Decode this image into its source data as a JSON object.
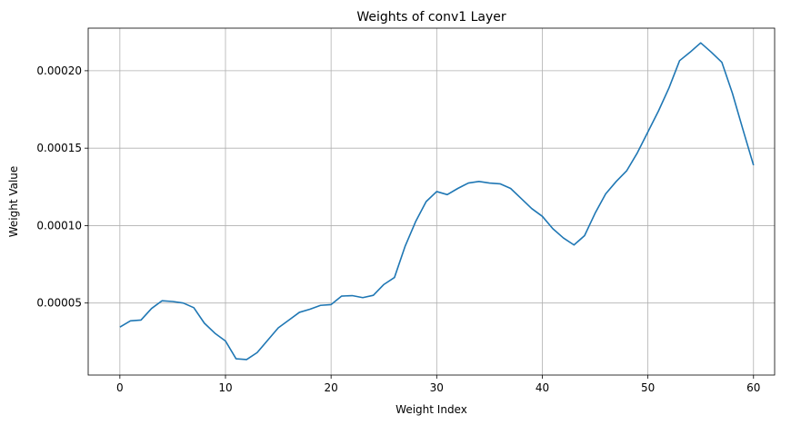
{
  "chart_data": {
    "type": "line",
    "title": "Weights of conv1 Layer",
    "xlabel": "Weight Index",
    "ylabel": "Weight Value",
    "xlim": [
      -3,
      62
    ],
    "ylim": [
      3.5e-06,
      0.0002275
    ],
    "grid": true,
    "xticks": [
      0,
      10,
      20,
      30,
      40,
      50,
      60
    ],
    "xtick_labels": [
      "0",
      "10",
      "20",
      "30",
      "40",
      "50",
      "60"
    ],
    "yticks": [
      5e-05,
      0.0001,
      0.00015,
      0.0002
    ],
    "ytick_labels": [
      "0.00005",
      "0.00010",
      "0.00015",
      "0.00020"
    ],
    "colors": {
      "line": "#1f77b4",
      "grid": "#b0b0b0"
    },
    "series": [
      {
        "x": [
          0,
          1,
          2,
          3,
          4,
          5,
          6,
          7,
          8,
          9,
          10,
          11,
          12,
          13,
          14,
          15,
          16,
          17,
          18,
          19,
          20,
          21,
          22,
          23,
          24,
          25,
          26,
          27,
          28,
          29,
          30,
          31,
          32,
          33,
          34,
          35,
          36,
          37,
          38,
          39,
          40,
          41,
          42,
          43,
          44,
          45,
          46,
          47,
          48,
          49,
          50,
          51,
          52,
          53,
          54,
          55,
          56,
          57,
          58,
          59,
          60
        ],
        "values": [
          3.45e-05,
          3.85e-05,
          3.9e-05,
          4.65e-05,
          5.15e-05,
          5.1e-05,
          5e-05,
          4.7e-05,
          3.7e-05,
          3.05e-05,
          2.55e-05,
          1.4e-05,
          1.35e-05,
          1.8e-05,
          2.6e-05,
          3.4e-05,
          3.9e-05,
          4.4e-05,
          4.6e-05,
          4.85e-05,
          4.9e-05,
          5.45e-05,
          5.48e-05,
          5.35e-05,
          5.5e-05,
          6.2e-05,
          6.65e-05,
          8.65e-05,
          0.0001025,
          0.0001155,
          0.000122,
          0.00012,
          0.000124,
          0.0001275,
          0.0001285,
          0.0001275,
          0.000127,
          0.000124,
          0.0001175,
          0.000111,
          0.000106,
          9.8e-05,
          9.2e-05,
          8.75e-05,
          9.35e-05,
          0.000108,
          0.0001205,
          0.0001285,
          0.0001355,
          0.000147,
          0.0001605,
          0.000174,
          0.000189,
          0.0002065,
          0.000212,
          0.000218,
          0.000212,
          0.0002055,
          0.0001855,
          0.000162,
          0.000139
        ]
      }
    ]
  }
}
